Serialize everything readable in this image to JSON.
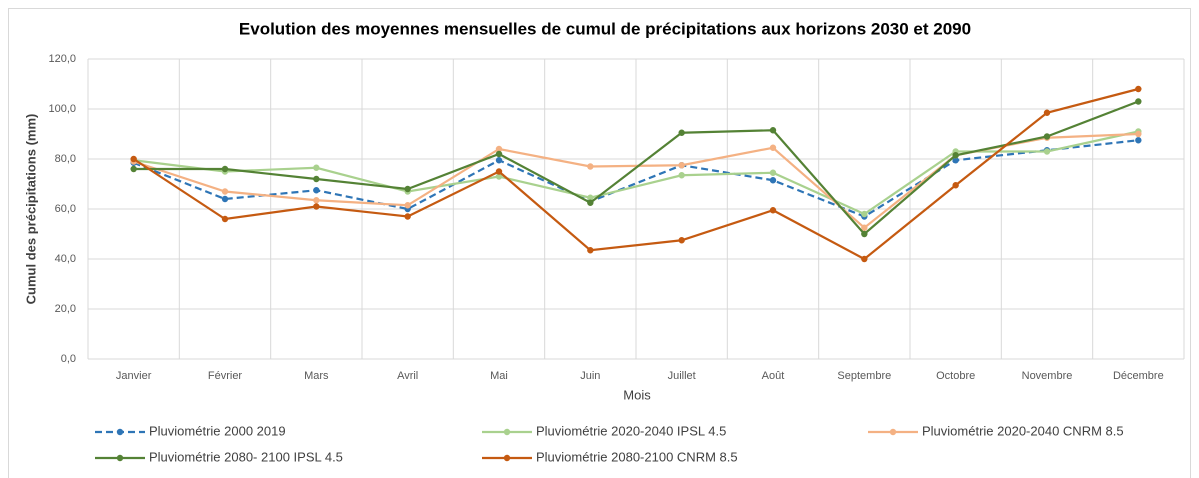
{
  "chart_data": {
    "type": "line",
    "title": "Evolution des moyennes mensuelles de cumul de précipitations aux horizons 2030 et 2090",
    "x_label": "Mois",
    "y_label": "Cumul des précipitations (mm)",
    "categories": [
      "Janvier",
      "Février",
      "Mars",
      "Avril",
      "Mai",
      "Juin",
      "Juillet",
      "Août",
      "Septembre",
      "Octobre",
      "Novembre",
      "Décembre"
    ],
    "ylim": [
      0,
      120
    ],
    "yticks": [
      {
        "value": 0,
        "label": "0,0"
      },
      {
        "value": 20,
        "label": "20,0"
      },
      {
        "value": 40,
        "label": "40,0"
      },
      {
        "value": 60,
        "label": "60,0"
      },
      {
        "value": 80,
        "label": "80,0"
      },
      {
        "value": 100,
        "label": "100,0"
      },
      {
        "value": 120,
        "label": "120,0"
      }
    ],
    "grid": true,
    "series": [
      {
        "name": "Pluviométrie 2000 2019",
        "color": "#2e75b6",
        "dashed": true,
        "values": [
          78.5,
          64,
          67.5,
          60,
          79.5,
          63,
          77.5,
          71.5,
          57,
          79.5,
          83.5,
          87.5
        ]
      },
      {
        "name": "Pluviométrie 2020-2040 IPSL 4.5",
        "color": "#a9d18e",
        "dashed": false,
        "values": [
          79.5,
          75,
          76.5,
          67,
          73,
          64.5,
          73.5,
          74.5,
          58,
          83,
          83,
          91
        ]
      },
      {
        "name": "Pluviométrie 2020-2040 CNRM 8.5",
        "color": "#f4b183",
        "dashed": false,
        "values": [
          79,
          67,
          63.5,
          61.5,
          84,
          77,
          77.5,
          84.5,
          52.5,
          81.5,
          88.5,
          90
        ]
      },
      {
        "name": "Pluviométrie 2080- 2100 IPSL 4.5",
        "color": "#548235",
        "dashed": false,
        "values": [
          76,
          76,
          72,
          68,
          82,
          62.5,
          90.5,
          91.5,
          50,
          81.5,
          89,
          103
        ]
      },
      {
        "name": "Pluviométrie 2080-2100 CNRM 8.5",
        "color": "#c55a11",
        "dashed": false,
        "values": [
          80,
          56,
          61,
          57,
          75,
          43.5,
          47.5,
          59.5,
          40,
          69.5,
          98.5,
          108
        ]
      }
    ]
  }
}
